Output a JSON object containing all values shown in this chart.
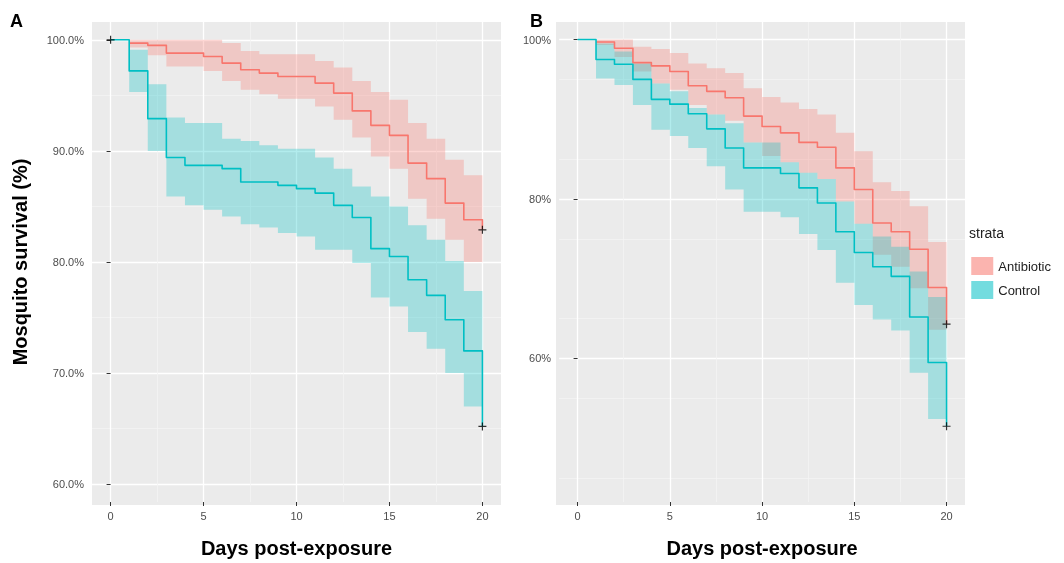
{
  "chart_data": [
    {
      "type": "step",
      "title": "A",
      "xlabel": "Days post-exposure",
      "ylabel": "Mosquito survival (%)",
      "xlim": [
        -1,
        21
      ],
      "xticks": [
        0,
        5,
        10,
        15,
        20
      ],
      "ylim": [
        58.4,
        101.6
      ],
      "yticks": [
        {
          "value": 60,
          "label": "60.0%"
        },
        {
          "value": 70,
          "label": "70.0%"
        },
        {
          "value": 80,
          "label": "80.0%"
        },
        {
          "value": 90,
          "label": "90.0%"
        },
        {
          "value": 100,
          "label": "100.0%"
        }
      ],
      "grid": true,
      "legend": false,
      "series": [
        {
          "color": "#f8766d",
          "x": [
            0,
            1,
            2,
            3,
            4,
            5,
            6,
            7,
            8,
            9,
            10,
            11,
            12,
            13,
            14,
            15,
            16,
            17,
            18,
            19,
            20
          ],
          "values": [
            null,
            99.7,
            99.5,
            98.8,
            98.8,
            98.5,
            97.9,
            97.3,
            97.0,
            96.7,
            96.7,
            96.1,
            95.2,
            93.6,
            92.3,
            91.4,
            88.9,
            87.5,
            85.3,
            83.8,
            82.9
          ],
          "upper": [
            100,
            100,
            100,
            100,
            100,
            100,
            99.7,
            99.0,
            98.7,
            98.7,
            98.7,
            98.1,
            97.5,
            96.3,
            95.3,
            94.6,
            92.5,
            91.1,
            89.2,
            87.8,
            87.8
          ],
          "lower": [
            100,
            99.3,
            98.6,
            97.6,
            97.6,
            97.2,
            96.3,
            95.5,
            95.1,
            94.7,
            94.7,
            94.0,
            92.8,
            91.2,
            89.5,
            88.4,
            85.7,
            83.9,
            82.0,
            80.0,
            80.0
          ]
        },
        {
          "color": "#00bfc4",
          "x": [
            0,
            1,
            2,
            3,
            4,
            5,
            6,
            7,
            8,
            9,
            10,
            11,
            12,
            13,
            14,
            15,
            16,
            17,
            18,
            19,
            20
          ],
          "values": [
            100,
            97.2,
            92.9,
            89.4,
            88.7,
            88.7,
            88.4,
            87.2,
            87.2,
            86.9,
            86.6,
            86.2,
            85.1,
            84.0,
            81.2,
            80.5,
            78.4,
            77.0,
            74.8,
            72.0,
            65.2
          ],
          "upper": [
            100,
            99.1,
            96.0,
            93.0,
            92.5,
            92.5,
            91.1,
            90.9,
            90.5,
            90.2,
            90.2,
            89.4,
            88.4,
            86.8,
            85.9,
            85.0,
            83.3,
            82.0,
            80.1,
            77.4,
            77.4
          ],
          "lower": [
            100,
            95.3,
            90.0,
            85.9,
            85.1,
            84.7,
            84.1,
            83.4,
            83.1,
            82.6,
            82.3,
            81.1,
            81.1,
            79.9,
            76.8,
            76.0,
            73.7,
            72.2,
            70.0,
            67.0,
            67.0
          ]
        },
        {
          "type": "scatter",
          "marker": "cross",
          "color": "#000000",
          "x": [
            0,
            20,
            20
          ],
          "values": [
            100,
            82.9,
            65.2
          ]
        }
      ]
    },
    {
      "type": "step",
      "title": "B",
      "xlabel": "Days post-exposure",
      "xlim": [
        -1,
        21
      ],
      "xticks": [
        0,
        5,
        10,
        15,
        20
      ],
      "ylim": [
        42,
        102.2
      ],
      "yticks": [
        {
          "value": 60,
          "label": "60%"
        },
        {
          "value": 80,
          "label": "80%"
        },
        {
          "value": 100,
          "label": "100%"
        }
      ],
      "grid": true,
      "legend": "right",
      "legend_title": "strata",
      "series": [
        {
          "name": "Antibiotic",
          "color": "#f8766d",
          "x": [
            0,
            1,
            2,
            3,
            4,
            5,
            6,
            7,
            8,
            9,
            10,
            11,
            12,
            13,
            14,
            15,
            16,
            17,
            18,
            19,
            20
          ],
          "values": [
            null,
            99.7,
            98.9,
            97.1,
            96.7,
            96.0,
            94.2,
            93.5,
            92.7,
            90.4,
            89.1,
            88.3,
            87.1,
            86.5,
            83.9,
            81.2,
            77.0,
            75.9,
            73.7,
            68.9,
            64.3
          ],
          "upper": [
            100,
            100,
            100,
            99.1,
            98.8,
            98.3,
            97.0,
            96.4,
            95.8,
            93.9,
            92.8,
            92.1,
            91.3,
            90.6,
            88.3,
            86.0,
            82.1,
            81.0,
            79.1,
            74.6,
            74.6
          ],
          "lower": [
            100,
            99.3,
            97.8,
            96.0,
            94.5,
            93.7,
            91.8,
            90.6,
            89.8,
            87.1,
            85.4,
            84.6,
            83.3,
            82.5,
            79.7,
            76.9,
            73.0,
            71.5,
            68.8,
            63.6,
            63.6
          ]
        },
        {
          "name": "Control",
          "color": "#00bfc4",
          "x": [
            0,
            1,
            2,
            3,
            4,
            5,
            6,
            7,
            8,
            9,
            10,
            11,
            12,
            13,
            14,
            15,
            16,
            17,
            18,
            19,
            20
          ],
          "values": [
            100,
            97.5,
            96.9,
            95.0,
            92.5,
            91.9,
            90.7,
            88.8,
            86.4,
            83.9,
            83.9,
            83.2,
            81.4,
            79.5,
            75.9,
            73.3,
            71.5,
            70.3,
            65.2,
            59.5,
            51.5
          ],
          "upper": [
            100,
            99.5,
            98.5,
            97.0,
            94.5,
            93.5,
            91.4,
            90.6,
            89.5,
            87.1,
            87.1,
            84.6,
            83.3,
            82.5,
            79.7,
            76.9,
            75.3,
            74.0,
            70.9,
            67.7,
            67.7
          ],
          "lower": [
            100,
            95.1,
            94.3,
            91.8,
            88.7,
            87.9,
            86.4,
            84.1,
            81.2,
            78.4,
            78.4,
            77.7,
            75.6,
            73.6,
            69.5,
            66.7,
            64.9,
            63.5,
            58.2,
            52.4,
            52.4
          ]
        },
        {
          "type": "scatter",
          "marker": "cross",
          "color": "#000000",
          "x": [
            20,
            20
          ],
          "values": [
            64.3,
            51.5
          ]
        }
      ]
    }
  ]
}
